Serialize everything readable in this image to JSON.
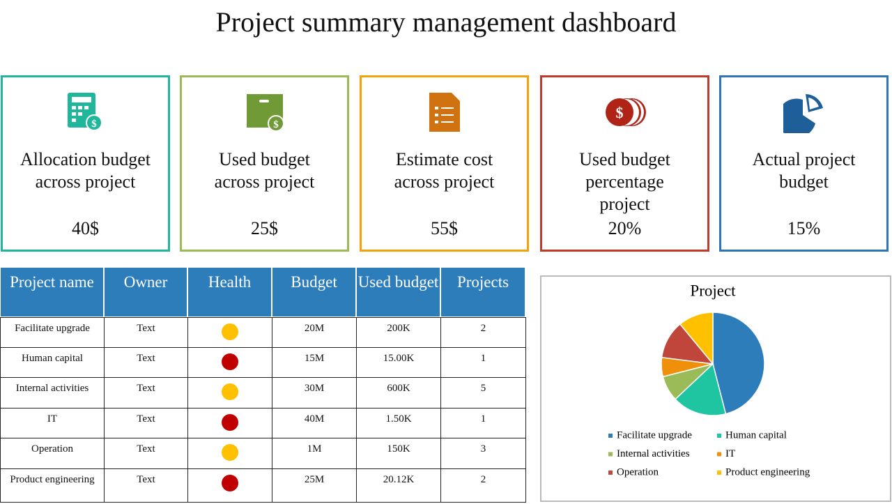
{
  "header": {
    "title": "Project summary management dashboard"
  },
  "cards": [
    {
      "label": [
        "Allocation budget",
        "across project"
      ],
      "value": "40$",
      "color": "#20b69b"
    },
    {
      "label": [
        "Used budget",
        "across project"
      ],
      "value": "25$",
      "color": "#9bbb59"
    },
    {
      "label": [
        "Estimate cost",
        "across project"
      ],
      "value": "55$",
      "color": "#f0a30a"
    },
    {
      "label": [
        "Used budget",
        "percentage",
        "project"
      ],
      "value": "20%",
      "color": "#c0392b"
    },
    {
      "label": [
        "Actual project",
        "budget"
      ],
      "value": "15%",
      "color": "#2e75b6"
    }
  ],
  "table": {
    "header": [
      "Project name",
      "Owner",
      "Health",
      "Budget",
      "Used budget",
      "Projects"
    ],
    "rows": [
      [
        "Facilitate upgrade",
        "Text",
        "20M",
        "200K",
        2
      ],
      [
        "Human capital",
        "Text",
        "15M",
        "15.00K",
        1
      ],
      [
        "Internal activities",
        "Text",
        "30M",
        "600K",
        5
      ],
      [
        "IT",
        "Text",
        "40M",
        "1.50K",
        1
      ],
      [
        "Operation",
        "Text",
        "1M",
        "150K",
        3
      ],
      [
        "Product engineering",
        "Text",
        "25M",
        "20.12K",
        2
      ]
    ],
    "health_colors": [
      "#ffc000",
      "#c00000",
      "#ffc000",
      "#c00000",
      "#ffc000",
      "#c00000"
    ]
  },
  "chart_data": {
    "type": "pie",
    "title": "Project",
    "categories": [
      "Facilitate upgrade",
      "Human capital",
      "Internal activities",
      "IT",
      "Operation",
      "Product engineering"
    ],
    "values": [
      46,
      17,
      8,
      6,
      12,
      11
    ],
    "colors": [
      "#2e7dbb",
      "#1fc4a0",
      "#9bbb59",
      "#f0900a",
      "#c0453a",
      "#ffc000"
    ]
  }
}
